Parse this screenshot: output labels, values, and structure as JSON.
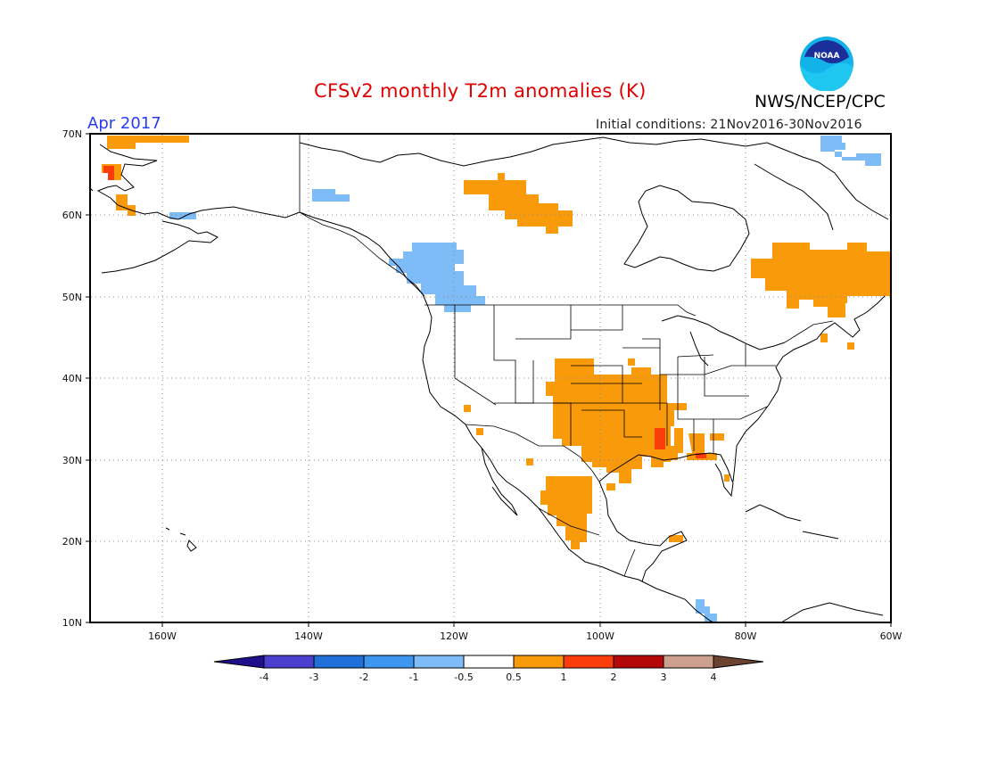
{
  "header": {
    "title": "CFSv2 monthly T2m anomalies (K)",
    "agency": "NWS/NCEP/CPC",
    "logo_text": "NOAA",
    "month": "Apr 2017",
    "initial_conditions": "Initial conditions: 21Nov2016-30Nov2016"
  },
  "map": {
    "lat_labels": [
      "70N",
      "60N",
      "50N",
      "40N",
      "30N",
      "20N",
      "10N"
    ],
    "lon_labels": [
      "160W",
      "140W",
      "120W",
      "100W",
      "80W",
      "60W"
    ],
    "lat_range": [
      10,
      70
    ],
    "lon_range": [
      -170,
      -60
    ],
    "gridlines": "dotted"
  },
  "colorbar": {
    "labels": [
      "-4",
      "-3",
      "-2",
      "-1",
      "-0.5",
      "0.5",
      "1",
      "2",
      "3",
      "4"
    ],
    "colors": [
      "#1f0f8c",
      "#4b3fd0",
      "#1f6fd8",
      "#3d96f0",
      "#7dbcf6",
      "#ffffff",
      "#f89a0a",
      "#fa3d0a",
      "#b40808",
      "#cc9f8e",
      "#6b4130"
    ]
  },
  "anomaly_regions": [
    {
      "name": "western-alaska-warm",
      "level": "0.5-1",
      "color": "#f89a0a"
    },
    {
      "name": "alaska-coast-hot",
      "level": "1-2",
      "color": "#fa3d0a"
    },
    {
      "name": "pacific-northwest-cool",
      "level": "-1 to -0.5",
      "color": "#7dbcf6"
    },
    {
      "name": "northwest-territories-warm",
      "level": "0.5-1",
      "color": "#f89a0a"
    },
    {
      "name": "quebec-labrador-warm",
      "level": "0.5-1",
      "color": "#f89a0a"
    },
    {
      "name": "southern-plains-warm",
      "level": "0.5-1",
      "color": "#f89a0a"
    },
    {
      "name": "lower-mississippi-hot",
      "level": "1-2",
      "color": "#fa3d0a"
    },
    {
      "name": "northern-mexico-warm",
      "level": "0.5-1",
      "color": "#f89a0a"
    },
    {
      "name": "baffin-cool",
      "level": "-1 to -0.5",
      "color": "#7dbcf6"
    },
    {
      "name": "central-america-cool",
      "level": "-1 to -0.5",
      "color": "#7dbcf6"
    }
  ]
}
